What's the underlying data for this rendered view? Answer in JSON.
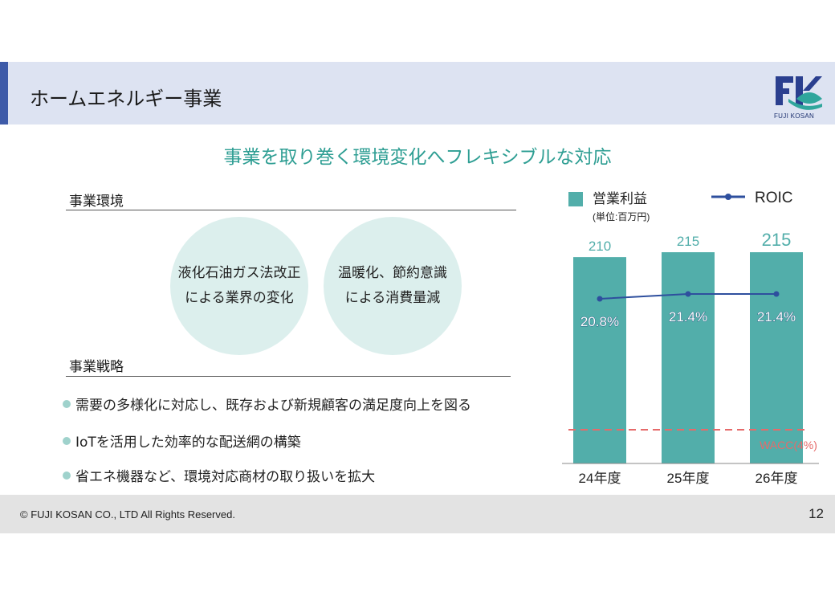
{
  "header": {
    "title": "ホームエネルギー事業",
    "logo_text": "FUJI KOSAN"
  },
  "subtitle": "事業を取り巻く環境変化へフレキシブルな対応",
  "environment": {
    "heading": "事業環境",
    "circles": [
      "液化石油ガス法改正\nによる業界の変化",
      "温暖化、節約意識\nによる消費量減"
    ]
  },
  "strategy": {
    "heading": "事業戦略",
    "bullets": [
      "需要の多様化に対応し、既存および新規顧客の満足度向上を図る",
      "IoTを活用した効率的な配送網の構築",
      "省エネ機器など、環境対応商材の取り扱いを拡大"
    ]
  },
  "chart_data": {
    "type": "bar",
    "categories": [
      "24年度",
      "25年度",
      "26年度"
    ],
    "series": [
      {
        "name": "営業利益",
        "values": [
          210,
          215,
          215
        ],
        "labels": [
          "210",
          "215",
          "215"
        ],
        "color": "#52aeaa"
      },
      {
        "name": "ROIC",
        "values": [
          20.8,
          21.4,
          21.4
        ],
        "labels": [
          "20.8%",
          "21.4%",
          "21.4%"
        ],
        "color": "#2e4f9e"
      }
    ],
    "unit_note": "(単位:百万円)",
    "reference_line": {
      "label": "WACC(4%)",
      "value": 4,
      "color": "#e66a6a"
    },
    "legend_position": "top"
  },
  "footer": {
    "copyright": "© FUJI KOSAN CO., LTD All Rights Reserved.",
    "page_number": "12"
  }
}
